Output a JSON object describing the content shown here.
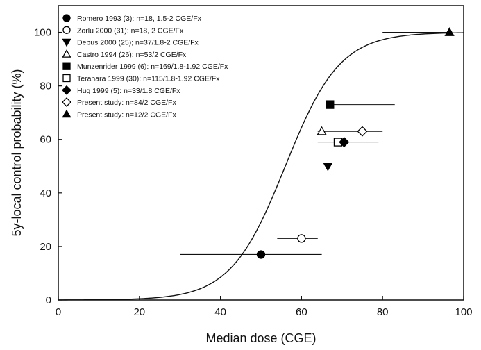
{
  "chart_data": {
    "type": "scatter",
    "title": "",
    "xlabel": "Median dose (CGE)",
    "ylabel": "5y-local control probability (%)",
    "xlim": [
      0,
      100
    ],
    "ylim": [
      0,
      110
    ],
    "xticks": [
      0,
      20,
      40,
      60,
      80,
      100
    ],
    "yticks": [
      0,
      20,
      40,
      60,
      80,
      100
    ],
    "grid": false,
    "legend_position": "top-left",
    "fitted_curve": {
      "d50": 56,
      "gamma50": 2.08,
      "max": 100
    },
    "series": [
      {
        "name": "Romero 1993 (3): n=18, 1.5-2 CGE/Fx",
        "marker": "circle-filled",
        "x": 50,
        "y": 17,
        "xerr": [
          30,
          65
        ]
      },
      {
        "name": "Zorlu 2000 (31): n=18, 2 CGE/Fx",
        "marker": "circle-open",
        "x": 60,
        "y": 23,
        "xerr": [
          54,
          64
        ]
      },
      {
        "name": "Debus 2000 (25); n=37/1.8-2 CGE/Fx",
        "marker": "triangle-down-filled",
        "x": 66.5,
        "y": 50
      },
      {
        "name": "Castro 1994 (26): n=53/2 CGE/Fx",
        "marker": "triangle-up-open",
        "x": 65,
        "y": 63
      },
      {
        "name": "Munzenrider 1999 (6): n=169/1.8-1.92 CGE/Fx",
        "marker": "square-filled",
        "x": 67,
        "y": 73,
        "xerr": [
          67,
          83
        ]
      },
      {
        "name": "Terahara 1999 (30): n=115/1.8-1.92 CGE/Fx",
        "marker": "square-open",
        "x": 69,
        "y": 59
      },
      {
        "name": "Hug 1999 (5): n=33/1.8 CGE/Fx",
        "marker": "diamond-filled",
        "x": 70.5,
        "y": 59,
        "xerr": [
          64,
          79
        ]
      },
      {
        "name": "Present study: n=84/2 CGE/Fx",
        "marker": "diamond-open",
        "x": 75,
        "y": 63,
        "xerr": [
          64,
          80
        ]
      },
      {
        "name": "Present study: n=12/2 CGE/Fx",
        "marker": "triangle-up-filled",
        "x": 96.5,
        "y": 100,
        "xerr": [
          80,
          96.5
        ]
      }
    ]
  }
}
